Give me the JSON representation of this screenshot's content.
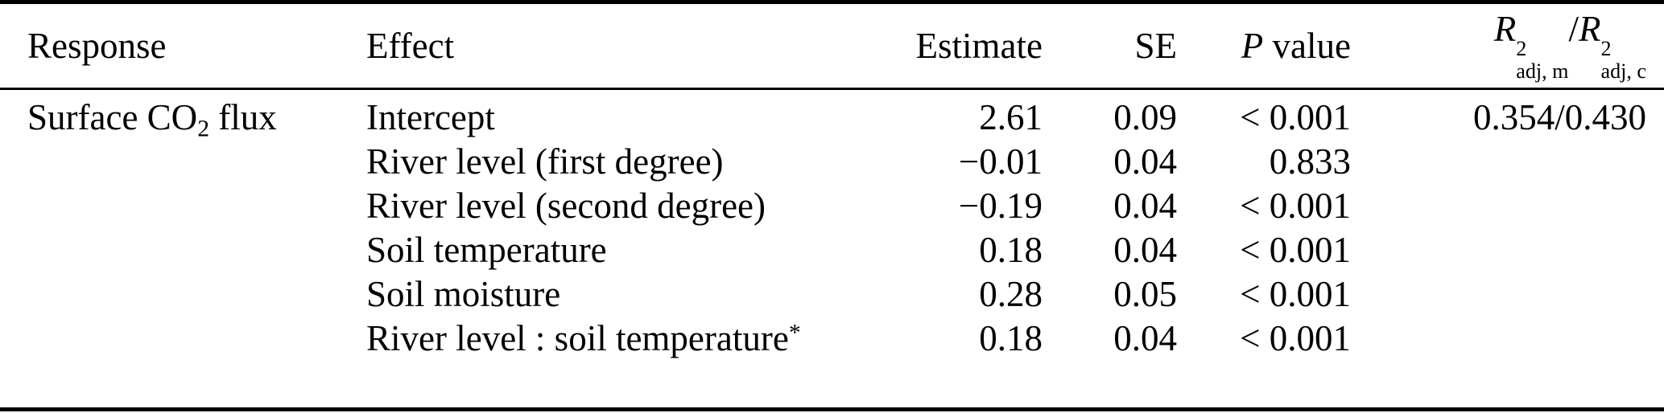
{
  "colors": {
    "text": "#000000",
    "background": "#ffffff",
    "rule": "#000000"
  },
  "header": {
    "response": "Response",
    "effect": "Effect",
    "estimate": "Estimate",
    "se": "SE",
    "p": {
      "symbol": "P",
      "rest": " value"
    },
    "r2": {
      "r": "R",
      "sup": "2",
      "sub_m": "adj, m",
      "slash": "/",
      "sub_c": "adj, c"
    }
  },
  "rows": [
    {
      "response": {
        "text": "Surface CO",
        "sub": "2",
        "suffix": " flux"
      },
      "effect": {
        "text": "Intercept"
      },
      "estimate": "2.61",
      "se": "0.09",
      "p_value": "< 0.001",
      "r2": "0.354/0.430"
    },
    {
      "effect": {
        "text": "River level (first degree)"
      },
      "estimate": "−0.01",
      "se": "0.04",
      "p_value": "0.833"
    },
    {
      "effect": {
        "text": "River level (second degree)"
      },
      "estimate": "−0.19",
      "se": "0.04",
      "p_value": "< 0.001"
    },
    {
      "effect": {
        "text": "Soil temperature"
      },
      "estimate": "0.18",
      "se": "0.04",
      "p_value": "< 0.001"
    },
    {
      "effect": {
        "text": "Soil moisture"
      },
      "estimate": "0.28",
      "se": "0.05",
      "p_value": "< 0.001"
    },
    {
      "effect": {
        "text": "River level : soil temperature",
        "sup": "*"
      },
      "estimate": "0.18",
      "se": "0.04",
      "p_value": "< 0.001"
    }
  ]
}
